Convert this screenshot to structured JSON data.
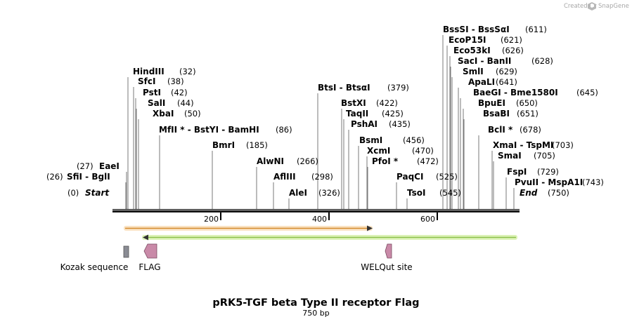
{
  "app": {
    "credit_text": "Created by",
    "credit_brand": "SnapGene"
  },
  "map": {
    "title": "pRK5-TGF beta Type II receptor Flag",
    "subtitle": "750 bp",
    "start_label": "Start",
    "start_pos": "(0)",
    "end_label": "End",
    "end_pos": "(750)",
    "ticks": [
      "200",
      "400",
      "600"
    ]
  },
  "sites": [
    {
      "label": "HindIII",
      "pos": "(32)"
    },
    {
      "label": "SfcI",
      "pos": "(38)"
    },
    {
      "label": "PstI",
      "pos": "(42)"
    },
    {
      "label": "SalI",
      "pos": "(44)"
    },
    {
      "label": "XbaI",
      "pos": "(50)"
    },
    {
      "label": "MfII * - BstYI - BamHI",
      "pos": "(86)"
    },
    {
      "label": "BmrI",
      "pos": "(185)"
    },
    {
      "label": "AlwNI",
      "pos": "(266)"
    },
    {
      "label": "AflIII",
      "pos": "(298)"
    },
    {
      "label": "AleI",
      "pos": "(326)"
    },
    {
      "label": "BtsI - BtsαI",
      "pos": "(379)"
    },
    {
      "label": "BstXI",
      "pos": "(422)"
    },
    {
      "label": "TaqII",
      "pos": "(425)"
    },
    {
      "label": "PshAI",
      "pos": "(435)"
    },
    {
      "label": "BsmI",
      "pos": "(456)"
    },
    {
      "label": "XcmI",
      "pos": "(470)"
    },
    {
      "label": "PfoI *",
      "pos": "(472)"
    },
    {
      "label": "PaqCI",
      "pos": "(525)"
    },
    {
      "label": "TsoI",
      "pos": "(545)"
    },
    {
      "label": "BssSI - BssSαI",
      "pos": "(611)"
    },
    {
      "label": "EcoP15I",
      "pos": "(621)"
    },
    {
      "label": "Eco53kI",
      "pos": "(626)"
    },
    {
      "label": "SacI - BanII",
      "pos": "(628)"
    },
    {
      "label": "SmlI",
      "pos": "(629)"
    },
    {
      "label": "ApaLI",
      "pos": "(641)"
    },
    {
      "label": "BaeGI - Bme1580I",
      "pos": "(645)"
    },
    {
      "label": "BpuEI",
      "pos": "(650)"
    },
    {
      "label": "BsaBI",
      "pos": "(651)"
    },
    {
      "label": "BclI *",
      "pos": "(678)"
    },
    {
      "label": "XmaI - TspMI",
      "pos": "(703)"
    },
    {
      "label": "SmaI",
      "pos": "(705)"
    },
    {
      "label": "FspI",
      "pos": "(729)"
    },
    {
      "label": "PvuII - MspA1I",
      "pos": "(743)"
    },
    {
      "label": "SfiI - BglI",
      "pos": "(26)"
    },
    {
      "label": "EaeI",
      "pos": "(27)"
    }
  ],
  "features": [
    {
      "label": "Kozak sequence",
      "color": "#8a8c94"
    },
    {
      "label": "FLAG",
      "color": "#c98aa8"
    },
    {
      "label": "WELQut site",
      "color": "#c98aa8"
    }
  ],
  "colors": {
    "backbone": "#1a1a1a",
    "orange_track": "#f0b673",
    "orange_stroke": "#d38a2a",
    "green_track": "#bde57a",
    "green_stroke": "#8cc04a"
  }
}
